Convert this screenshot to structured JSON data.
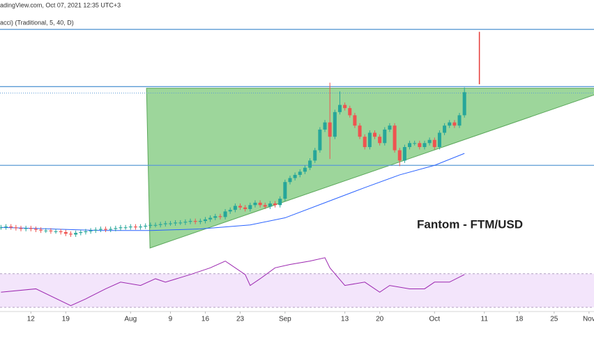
{
  "chart_data": {
    "type": "candlestick",
    "header": "adingView.com, Oct 07, 2021 12:35 UTC+3",
    "subheader": "acci) (Traditional, 5, 40, D)",
    "annotation": "Fantom - FTM/USD",
    "xlim": [
      4.8,
      124
    ],
    "ylim": [
      -0.1,
      3.1
    ],
    "xticks": [
      {
        "value": 11,
        "label": "12"
      },
      {
        "value": 18,
        "label": "19"
      },
      {
        "value": 31,
        "label": "Aug"
      },
      {
        "value": 39,
        "label": "9"
      },
      {
        "value": 46,
        "label": "16"
      },
      {
        "value": 53,
        "label": "23"
      },
      {
        "value": 62,
        "label": "Sep"
      },
      {
        "value": 74,
        "label": "13"
      },
      {
        "value": 81,
        "label": "20"
      },
      {
        "value": 92,
        "label": "Oct"
      },
      {
        "value": 102,
        "label": "11"
      },
      {
        "value": 109,
        "label": "18"
      },
      {
        "value": 116,
        "label": "25"
      },
      {
        "value": 123,
        "label": "Nov"
      }
    ],
    "up_color": "#26a69a",
    "down_color": "#ef5350",
    "x": [
      5,
      6,
      7,
      8,
      9,
      10,
      11,
      12,
      13,
      14,
      15,
      16,
      17,
      18,
      19,
      20,
      21,
      22,
      23,
      24,
      25,
      26,
      27,
      28,
      29,
      30,
      31,
      32,
      33,
      34,
      35,
      36,
      37,
      38,
      39,
      40,
      41,
      42,
      43,
      44,
      45,
      46,
      47,
      48,
      49,
      50,
      51,
      52,
      53,
      54,
      55,
      56,
      57,
      58,
      59,
      60,
      61,
      62,
      63,
      64,
      65,
      66,
      67,
      68,
      69,
      70,
      71,
      72,
      73,
      74,
      75,
      76,
      77,
      78,
      79,
      80,
      81,
      82,
      83,
      84,
      85,
      86,
      87,
      88,
      89,
      90,
      91,
      92,
      93,
      94,
      95,
      96,
      97,
      98
    ],
    "open": [
      0.24,
      0.24,
      0.25,
      0.24,
      0.23,
      0.22,
      0.23,
      0.22,
      0.21,
      0.2,
      0.2,
      0.19,
      0.19,
      0.18,
      0.16,
      0.15,
      0.17,
      0.18,
      0.19,
      0.2,
      0.21,
      0.22,
      0.21,
      0.22,
      0.23,
      0.24,
      0.24,
      0.25,
      0.24,
      0.25,
      0.26,
      0.27,
      0.27,
      0.28,
      0.29,
      0.29,
      0.3,
      0.3,
      0.31,
      0.32,
      0.31,
      0.32,
      0.34,
      0.36,
      0.38,
      0.37,
      0.44,
      0.46,
      0.51,
      0.49,
      0.47,
      0.52,
      0.55,
      0.52,
      0.5,
      0.54,
      0.52,
      0.6,
      0.81,
      0.86,
      0.9,
      0.94,
      0.99,
      1.08,
      1.21,
      1.47,
      1.56,
      1.38,
      1.69,
      1.78,
      1.74,
      1.65,
      1.52,
      1.38,
      1.25,
      1.43,
      1.38,
      1.3,
      1.47,
      1.52,
      1.21,
      1.08,
      1.25,
      1.3,
      1.3,
      1.25,
      1.3,
      1.34,
      1.25,
      1.43,
      1.52,
      1.56,
      1.52,
      1.65
    ],
    "high": [
      0.27,
      0.28,
      0.28,
      0.27,
      0.26,
      0.26,
      0.26,
      0.25,
      0.24,
      0.23,
      0.23,
      0.22,
      0.22,
      0.21,
      0.19,
      0.2,
      0.21,
      0.22,
      0.23,
      0.24,
      0.25,
      0.25,
      0.25,
      0.26,
      0.27,
      0.27,
      0.28,
      0.28,
      0.28,
      0.29,
      0.3,
      0.3,
      0.31,
      0.32,
      0.32,
      0.33,
      0.33,
      0.34,
      0.35,
      0.35,
      0.35,
      0.37,
      0.39,
      0.41,
      0.41,
      0.47,
      0.49,
      0.54,
      0.54,
      0.52,
      0.55,
      0.58,
      0.58,
      0.55,
      0.57,
      0.57,
      0.63,
      0.84,
      0.89,
      0.93,
      0.97,
      1.02,
      1.11,
      1.24,
      1.5,
      1.59,
      2.06,
      1.72,
      1.95,
      1.81,
      1.77,
      1.68,
      1.55,
      1.41,
      1.46,
      1.46,
      1.41,
      1.5,
      1.55,
      1.55,
      1.24,
      1.28,
      1.33,
      1.33,
      1.33,
      1.33,
      1.37,
      1.37,
      1.46,
      1.55,
      1.59,
      1.59,
      1.68,
      2.0
    ],
    "low": [
      0.21,
      0.21,
      0.21,
      0.2,
      0.19,
      0.19,
      0.19,
      0.18,
      0.17,
      0.17,
      0.16,
      0.16,
      0.15,
      0.13,
      0.12,
      0.12,
      0.14,
      0.15,
      0.16,
      0.17,
      0.18,
      0.18,
      0.18,
      0.19,
      0.2,
      0.21,
      0.21,
      0.21,
      0.21,
      0.22,
      0.23,
      0.24,
      0.24,
      0.25,
      0.26,
      0.26,
      0.27,
      0.27,
      0.28,
      0.28,
      0.28,
      0.29,
      0.31,
      0.33,
      0.34,
      0.34,
      0.41,
      0.43,
      0.46,
      0.44,
      0.44,
      0.49,
      0.49,
      0.47,
      0.47,
      0.49,
      0.49,
      0.57,
      0.78,
      0.83,
      0.87,
      0.91,
      0.96,
      1.05,
      1.18,
      1.44,
      1.1,
      1.35,
      1.66,
      1.71,
      1.62,
      1.49,
      1.35,
      1.22,
      1.22,
      1.35,
      1.27,
      1.27,
      1.44,
      1.18,
      1.01,
      1.05,
      1.22,
      1.27,
      1.22,
      1.22,
      1.27,
      1.22,
      1.22,
      1.4,
      1.49,
      1.49,
      1.49,
      1.62
    ],
    "close": [
      0.24,
      0.25,
      0.24,
      0.23,
      0.22,
      0.23,
      0.22,
      0.21,
      0.2,
      0.2,
      0.19,
      0.19,
      0.18,
      0.16,
      0.15,
      0.17,
      0.18,
      0.19,
      0.2,
      0.21,
      0.22,
      0.21,
      0.22,
      0.23,
      0.24,
      0.24,
      0.25,
      0.24,
      0.25,
      0.26,
      0.27,
      0.27,
      0.28,
      0.29,
      0.29,
      0.3,
      0.3,
      0.31,
      0.32,
      0.31,
      0.32,
      0.34,
      0.36,
      0.38,
      0.37,
      0.44,
      0.46,
      0.51,
      0.49,
      0.47,
      0.52,
      0.55,
      0.52,
      0.5,
      0.54,
      0.52,
      0.6,
      0.81,
      0.86,
      0.9,
      0.94,
      0.99,
      1.08,
      1.21,
      1.47,
      1.56,
      1.38,
      1.69,
      1.78,
      1.74,
      1.65,
      1.52,
      1.38,
      1.25,
      1.43,
      1.38,
      1.3,
      1.47,
      1.52,
      1.21,
      1.08,
      1.25,
      1.3,
      1.3,
      1.25,
      1.3,
      1.34,
      1.25,
      1.43,
      1.52,
      1.56,
      1.52,
      1.65,
      1.94
    ],
    "ma": {
      "color": "#2962ff",
      "x": [
        5,
        15,
        25,
        35,
        45,
        55,
        62,
        70,
        78,
        85,
        92,
        98
      ],
      "values": [
        0.24,
        0.22,
        0.2,
        0.2,
        0.22,
        0.27,
        0.36,
        0.55,
        0.74,
        0.9,
        1.02,
        1.17
      ]
    },
    "levels": {
      "color": "#5b9bd5",
      "values": [
        2.73,
        2.01,
        1.02
      ]
    },
    "dotted_level": 1.93,
    "triangle": {
      "color": "#7cc87a",
      "x": [
        34.2,
        124.2,
        124.2,
        34.9
      ],
      "y": [
        1.99,
        1.99,
        1.91,
        -0.02
      ]
    },
    "marker": {
      "color": "#e53935",
      "x": 101,
      "y": [
        2.04,
        2.7
      ]
    },
    "rsi": {
      "color": "#9c27b0",
      "ylim": [
        25,
        93
      ],
      "levels": [
        30,
        70
      ],
      "x": [
        5,
        12,
        19,
        22,
        26,
        29,
        33,
        36,
        38,
        43,
        47,
        50,
        51,
        54,
        55,
        57,
        60,
        63,
        67,
        70,
        71,
        74,
        78,
        81,
        83,
        87,
        90,
        92,
        95,
        98
      ],
      "values": [
        48,
        52,
        32,
        40,
        52,
        60,
        56,
        64,
        60,
        69,
        77,
        85,
        81,
        69,
        56,
        64,
        77,
        81,
        85,
        89,
        77,
        56,
        60,
        48,
        56,
        52,
        52,
        60,
        60,
        69
      ]
    }
  }
}
